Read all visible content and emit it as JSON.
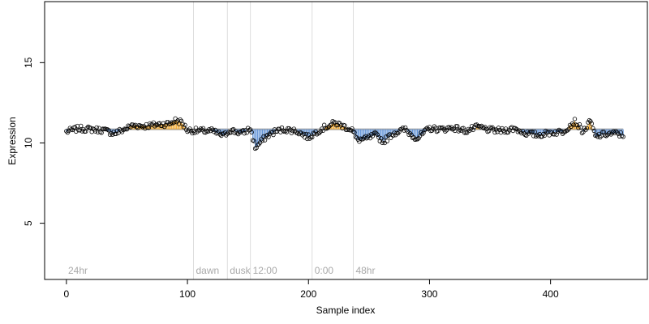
{
  "chart_data": {
    "type": "scatter",
    "xlabel": "Sample index",
    "ylabel": "Expression",
    "xlim": [
      -18,
      480
    ],
    "ylim": [
      1.5,
      18.8
    ],
    "xticks": [
      0,
      100,
      200,
      300,
      400
    ],
    "yticks": [
      5,
      10,
      15
    ],
    "xtick_labels": [
      "0",
      "100",
      "200",
      "300",
      "400"
    ],
    "ytick_labels": [
      "5",
      "10",
      "15"
    ],
    "grid": false,
    "colors": {
      "above": "#f5a623",
      "below": "#5b8fd6",
      "baseline": "#a9a9a9",
      "vline": "#dddddd",
      "point_stroke": "#000000"
    },
    "baseline_value": 10.85,
    "segment_lines": [
      {
        "x": 105,
        "label": "dawn"
      },
      {
        "x": 133,
        "label": "dusk"
      },
      {
        "x": 152,
        "label": "12:00"
      },
      {
        "x": 203,
        "label": "0:00"
      },
      {
        "x": 237,
        "label": "48hr"
      }
    ],
    "start_label": "24hr",
    "series": [
      {
        "anchors": [
          [
            0,
            10.7
          ],
          [
            10,
            10.9
          ],
          [
            20,
            10.85
          ],
          [
            30,
            10.8
          ],
          [
            40,
            10.6
          ],
          [
            48,
            10.85
          ],
          [
            55,
            11.1
          ],
          [
            65,
            11.05
          ],
          [
            75,
            11.15
          ],
          [
            85,
            11.2
          ],
          [
            90,
            11.4
          ],
          [
            95,
            11.3
          ],
          [
            100,
            10.8
          ],
          [
            110,
            10.75
          ],
          [
            120,
            10.75
          ],
          [
            130,
            10.45
          ],
          [
            135,
            10.8
          ],
          [
            145,
            10.6
          ],
          [
            152,
            10.9
          ],
          [
            156,
            9.7
          ],
          [
            160,
            10.0
          ],
          [
            165,
            10.4
          ],
          [
            172,
            10.7
          ],
          [
            180,
            10.85
          ],
          [
            190,
            10.75
          ],
          [
            200,
            10.35
          ],
          [
            210,
            10.85
          ],
          [
            222,
            11.25
          ],
          [
            230,
            11.0
          ],
          [
            236,
            10.85
          ],
          [
            240,
            10.2
          ],
          [
            248,
            10.25
          ],
          [
            255,
            10.5
          ],
          [
            262,
            10.1
          ],
          [
            270,
            10.6
          ],
          [
            280,
            10.85
          ],
          [
            285,
            10.5
          ],
          [
            290,
            10.3
          ],
          [
            300,
            10.9
          ],
          [
            310,
            10.85
          ],
          [
            320,
            10.95
          ],
          [
            330,
            10.75
          ],
          [
            340,
            11.0
          ],
          [
            350,
            10.8
          ],
          [
            360,
            10.75
          ],
          [
            370,
            10.9
          ],
          [
            380,
            10.6
          ],
          [
            390,
            10.5
          ],
          [
            400,
            10.65
          ],
          [
            410,
            10.7
          ],
          [
            420,
            11.35
          ],
          [
            427,
            10.7
          ],
          [
            433,
            11.35
          ],
          [
            437,
            10.4
          ],
          [
            445,
            10.55
          ],
          [
            455,
            10.6
          ],
          [
            460,
            10.45
          ]
        ]
      }
    ]
  }
}
